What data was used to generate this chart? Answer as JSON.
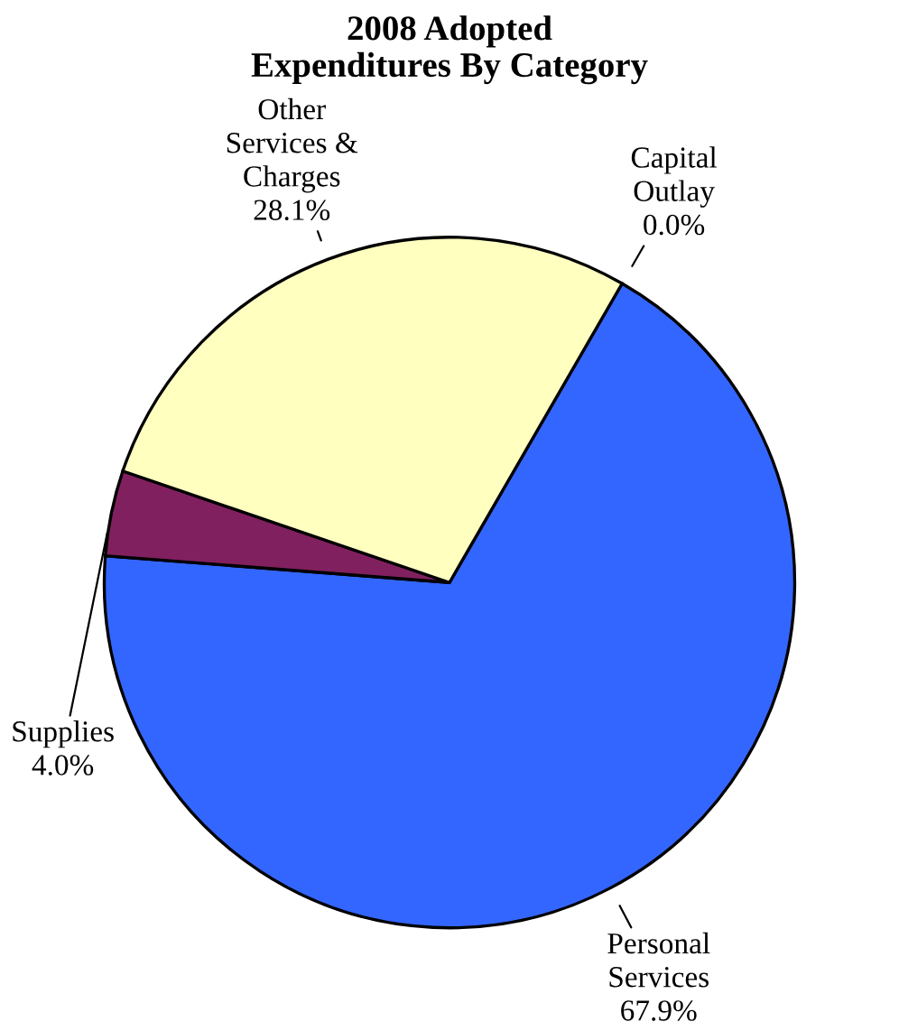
{
  "chart_data": {
    "type": "pie",
    "title": "2008 Adopted\nExpenditures By Category",
    "categories": [
      "Personal\nServices",
      "Supplies",
      "Other\nServices &\nCharges",
      "Capital\nOutlay"
    ],
    "values": [
      67.9,
      4.0,
      28.1,
      0.0
    ],
    "value_labels": [
      "67.9%",
      "4.0%",
      "28.1%",
      "0.0%"
    ],
    "colors": [
      "#3366ff",
      "#80205f",
      "#ffffc0",
      "#9999ff"
    ]
  }
}
